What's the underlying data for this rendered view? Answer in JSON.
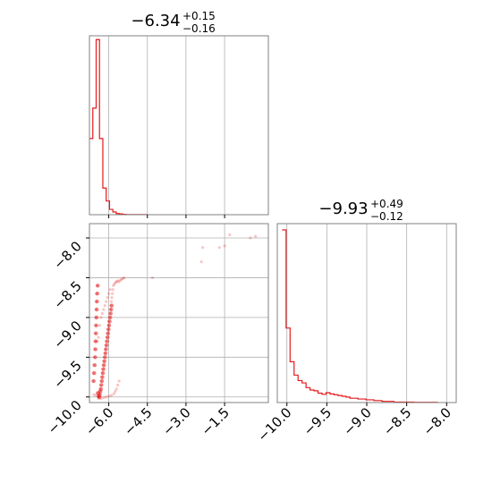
{
  "chart_data": [
    {
      "type": "histogram",
      "panel": "top-left",
      "title": {
        "value": "−6.34",
        "upper": "+0.15",
        "lower": "−0.16"
      },
      "xlim": [
        -6.75,
        0.2
      ],
      "xticks": [
        -6.0,
        -4.5,
        -3.0,
        -1.5
      ],
      "grid": true,
      "bins": [
        {
          "x0": -6.75,
          "x1": -6.62,
          "count": 10
        },
        {
          "x0": -6.62,
          "x1": -6.49,
          "count": 14
        },
        {
          "x0": -6.49,
          "x1": -6.36,
          "count": 23
        },
        {
          "x0": -6.36,
          "x1": -6.23,
          "count": 10
        },
        {
          "x0": -6.23,
          "x1": -6.1,
          "count": 3.5
        },
        {
          "x0": -6.1,
          "x1": -5.97,
          "count": 1.8
        },
        {
          "x0": -5.97,
          "x1": -5.84,
          "count": 0.7
        },
        {
          "x0": -5.84,
          "x1": -5.71,
          "count": 0.35
        },
        {
          "x0": -5.71,
          "x1": -5.58,
          "count": 0.15
        },
        {
          "x0": -5.58,
          "x1": -5.45,
          "count": 0.1
        },
        {
          "x0": -5.45,
          "x1": -5.32,
          "count": 0.05
        },
        {
          "x0": -5.32,
          "x1": -4.5,
          "count": 0.02
        }
      ],
      "ymax": 23.5,
      "color": "#e41a1c"
    },
    {
      "type": "scatter",
      "panel": "bottom-left",
      "xlim": [
        -6.75,
        0.2
      ],
      "ylim": [
        -10.07,
        -7.82
      ],
      "xticks": [
        -6.0,
        -4.5,
        -3.0,
        -1.5
      ],
      "yticks": [
        -10.0,
        -9.5,
        -9.0,
        -8.5,
        -8.0
      ],
      "grid": true,
      "color": "#e41a1c",
      "points": [
        [
          -6.62,
          -9.8
        ],
        [
          -6.6,
          -9.7
        ],
        [
          -6.58,
          -9.6
        ],
        [
          -6.56,
          -9.5
        ],
        [
          -6.55,
          -9.4
        ],
        [
          -6.54,
          -9.3
        ],
        [
          -6.53,
          -9.2
        ],
        [
          -6.52,
          -9.1
        ],
        [
          -6.51,
          -9.0
        ],
        [
          -6.5,
          -8.9
        ],
        [
          -6.49,
          -8.8
        ],
        [
          -6.48,
          -8.7
        ],
        [
          -6.46,
          -8.6
        ],
        [
          -6.45,
          -9.95
        ],
        [
          -6.42,
          -9.99
        ],
        [
          -6.4,
          -10.0
        ],
        [
          -6.38,
          -9.97
        ],
        [
          -6.36,
          -9.93
        ],
        [
          -6.34,
          -9.9
        ],
        [
          -6.32,
          -9.85
        ],
        [
          -6.3,
          -9.8
        ],
        [
          -6.28,
          -9.75
        ],
        [
          -6.26,
          -9.7
        ],
        [
          -6.24,
          -9.65
        ],
        [
          -6.22,
          -9.6
        ],
        [
          -6.2,
          -9.55
        ],
        [
          -6.18,
          -9.5
        ],
        [
          -6.16,
          -9.45
        ],
        [
          -6.14,
          -9.4
        ],
        [
          -6.12,
          -9.35
        ],
        [
          -6.1,
          -9.3
        ],
        [
          -6.08,
          -9.25
        ],
        [
          -6.06,
          -9.2
        ],
        [
          -6.04,
          -9.15
        ],
        [
          -6.02,
          -9.1
        ],
        [
          -6.0,
          -9.05
        ],
        [
          -5.98,
          -9.0
        ],
        [
          -5.96,
          -8.95
        ],
        [
          -5.94,
          -8.9
        ],
        [
          -5.92,
          -8.85
        ],
        [
          -5.9,
          -8.8
        ],
        [
          -5.88,
          -8.75
        ],
        [
          -5.86,
          -8.7
        ],
        [
          -5.84,
          -8.65
        ],
        [
          -5.82,
          -8.6
        ],
        [
          -5.78,
          -8.58
        ],
        [
          -5.74,
          -8.56
        ],
        [
          -5.7,
          -8.55
        ],
        [
          -5.65,
          -8.54
        ],
        [
          -5.6,
          -8.55
        ],
        [
          -5.55,
          -8.53
        ],
        [
          -5.5,
          -8.52
        ],
        [
          -5.45,
          -8.51
        ],
        [
          -5.4,
          -8.5
        ],
        [
          -4.3,
          -8.5
        ],
        [
          -6.58,
          -9.97
        ],
        [
          -6.5,
          -9.98
        ],
        [
          -6.4,
          -10.02
        ],
        [
          -6.3,
          -10.02
        ],
        [
          -6.2,
          -10.01
        ],
        [
          -6.1,
          -10.0
        ],
        [
          -6.0,
          -9.99
        ],
        [
          -5.9,
          -9.98
        ],
        [
          -5.8,
          -9.96
        ],
        [
          -5.75,
          -9.93
        ],
        [
          -5.7,
          -9.9
        ],
        [
          -5.65,
          -9.85
        ],
        [
          -5.6,
          -9.8
        ],
        [
          -6.45,
          -9.3
        ],
        [
          -6.4,
          -9.25
        ],
        [
          -6.35,
          -9.1
        ],
        [
          -6.3,
          -9.0
        ],
        [
          -6.25,
          -8.95
        ],
        [
          -6.2,
          -8.9
        ],
        [
          -6.15,
          -8.85
        ],
        [
          -6.1,
          -8.8
        ],
        [
          -6.05,
          -8.75
        ],
        [
          -6.0,
          -8.7
        ],
        [
          -5.95,
          -8.65
        ],
        [
          -2.4,
          -8.3
        ],
        [
          -2.35,
          -8.12
        ],
        [
          -1.7,
          -8.12
        ],
        [
          -1.5,
          -8.1
        ],
        [
          -1.3,
          -7.96
        ],
        [
          -0.5,
          -8.0
        ],
        [
          -0.3,
          -7.98
        ]
      ]
    },
    {
      "type": "histogram",
      "panel": "bottom-right",
      "title": {
        "value": "−9.93",
        "upper": "+0.49",
        "lower": "−0.12"
      },
      "xlim": [
        -10.12,
        -7.88
      ],
      "xticks": [
        -10.0,
        -9.5,
        -9.0,
        -8.5,
        -8.0
      ],
      "grid": true,
      "bins": [
        {
          "x0": -10.06,
          "x1": -10.01,
          "count": 22
        },
        {
          "x0": -10.01,
          "x1": -9.96,
          "count": 9.5
        },
        {
          "x0": -9.96,
          "x1": -9.91,
          "count": 5.2
        },
        {
          "x0": -9.91,
          "x1": -9.86,
          "count": 3.5
        },
        {
          "x0": -9.86,
          "x1": -9.81,
          "count": 2.8
        },
        {
          "x0": -9.81,
          "x1": -9.76,
          "count": 2.5
        },
        {
          "x0": -9.76,
          "x1": -9.71,
          "count": 1.9
        },
        {
          "x0": -9.71,
          "x1": -9.66,
          "count": 1.6
        },
        {
          "x0": -9.66,
          "x1": -9.61,
          "count": 1.5
        },
        {
          "x0": -9.61,
          "x1": -9.56,
          "count": 1.2
        },
        {
          "x0": -9.56,
          "x1": -9.51,
          "count": 1.05
        },
        {
          "x0": -9.51,
          "x1": -9.46,
          "count": 1.25
        },
        {
          "x0": -9.46,
          "x1": -9.41,
          "count": 1.1
        },
        {
          "x0": -9.41,
          "x1": -9.36,
          "count": 1.0
        },
        {
          "x0": -9.36,
          "x1": -9.31,
          "count": 0.9
        },
        {
          "x0": -9.31,
          "x1": -9.26,
          "count": 0.8
        },
        {
          "x0": -9.26,
          "x1": -9.21,
          "count": 0.7
        },
        {
          "x0": -9.21,
          "x1": -9.11,
          "count": 0.55
        },
        {
          "x0": -9.11,
          "x1": -9.01,
          "count": 0.45
        },
        {
          "x0": -9.01,
          "x1": -8.91,
          "count": 0.35
        },
        {
          "x0": -8.91,
          "x1": -8.81,
          "count": 0.25
        },
        {
          "x0": -8.81,
          "x1": -8.66,
          "count": 0.15
        },
        {
          "x0": -8.66,
          "x1": -8.41,
          "count": 0.06
        },
        {
          "x0": -8.41,
          "x1": -8.11,
          "count": 0.03
        }
      ],
      "ymax": 22.8,
      "color": "#e41a1c"
    }
  ]
}
